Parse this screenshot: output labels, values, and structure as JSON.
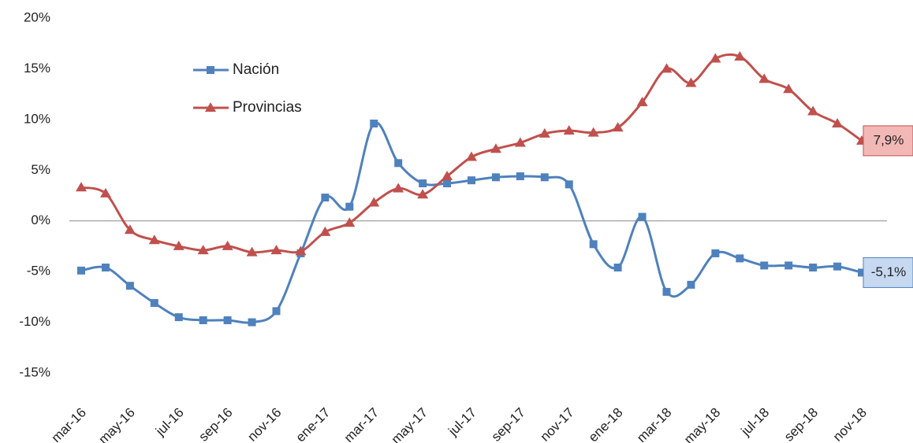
{
  "chart_data": {
    "type": "line",
    "categories": [
      "mar-16",
      null,
      "may-16",
      null,
      "jul-16",
      null,
      "sep-16",
      null,
      "nov-16",
      null,
      "ene-17",
      null,
      "mar-17",
      null,
      "may-17",
      null,
      "jul-17",
      null,
      "sep-17",
      null,
      "nov-17",
      null,
      "ene-18",
      null,
      "mar-18",
      null,
      "may-18",
      null,
      "jul-18",
      null,
      "sep-18",
      null,
      "nov-18"
    ],
    "series": [
      {
        "name": "Nación",
        "color": "#4f81bd",
        "marker": "square",
        "values": [
          -4.9,
          -4.6,
          -6.4,
          -8.1,
          -9.5,
          -9.8,
          -9.8,
          -10.0,
          -8.9,
          -3.2,
          2.3,
          1.4,
          9.6,
          5.7,
          3.7,
          3.7,
          4.0,
          4.3,
          4.4,
          4.3,
          3.6,
          -2.3,
          -4.6,
          0.4,
          -7.0,
          -6.3,
          -3.2,
          -3.7,
          -4.4,
          -4.4,
          -4.6,
          -4.5,
          -5.1
        ],
        "value_labels": [
          null,
          null,
          null,
          null,
          null,
          null,
          null,
          null,
          null,
          null,
          null,
          null,
          null,
          null,
          null,
          null,
          null,
          null,
          null,
          null,
          null,
          null,
          null,
          null,
          null,
          null,
          null,
          null,
          null,
          null,
          null,
          null,
          "-5,1%"
        ]
      },
      {
        "name": "Provincias",
        "color": "#c0504d",
        "marker": "triangle",
        "values": [
          3.3,
          2.7,
          -0.9,
          -1.9,
          -2.5,
          -2.9,
          -2.5,
          -3.1,
          -2.9,
          -3.0,
          -1.1,
          -0.2,
          1.8,
          3.2,
          2.6,
          4.4,
          6.3,
          7.1,
          7.7,
          8.6,
          8.9,
          8.7,
          9.2,
          11.7,
          15.0,
          13.6,
          16.0,
          16.2,
          14.0,
          13.0,
          10.8,
          9.6,
          7.9
        ],
        "value_labels": [
          null,
          null,
          null,
          null,
          null,
          null,
          null,
          null,
          null,
          null,
          null,
          null,
          null,
          null,
          null,
          null,
          null,
          null,
          null,
          null,
          null,
          null,
          null,
          null,
          null,
          null,
          null,
          null,
          null,
          null,
          null,
          null,
          "7,9%"
        ]
      }
    ],
    "ylim": [
      -15,
      20
    ],
    "yticks": [
      {
        "value": -15,
        "label": "-15%"
      },
      {
        "value": -10,
        "label": "-10%"
      },
      {
        "value": -5,
        "label": "-5%"
      },
      {
        "value": 0,
        "label": "0%"
      },
      {
        "value": 5,
        "label": "5%"
      },
      {
        "value": 10,
        "label": "10%"
      },
      {
        "value": 15,
        "label": "15%"
      },
      {
        "value": 20,
        "label": "20%"
      }
    ],
    "grid": false,
    "legend": "upper left",
    "smooth": true
  }
}
